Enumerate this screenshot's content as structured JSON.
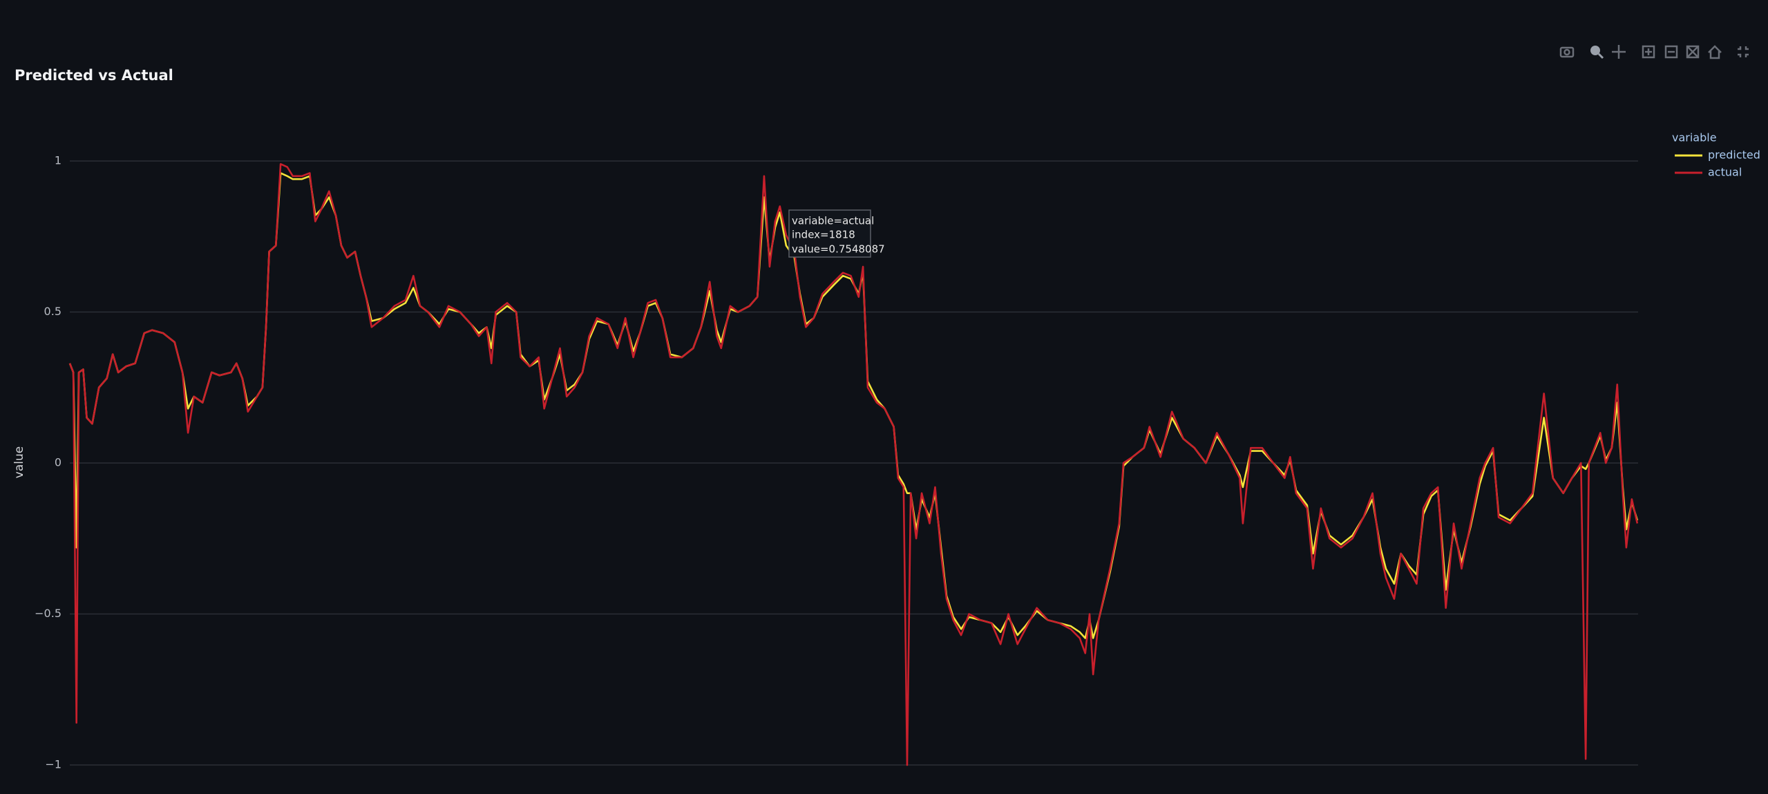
{
  "chart_data": {
    "type": "line",
    "title": "Predicted vs Actual",
    "y_label": "value",
    "legend_title": "variable",
    "legend_position": "right",
    "grid": true,
    "xlim": [
      0,
      3980
    ],
    "ylim": [
      -1,
      1
    ],
    "yticks": [
      {
        "value": -1,
        "label": "−1"
      },
      {
        "value": -0.5,
        "label": "−0.5"
      },
      0,
      0.5,
      1
    ],
    "tooltip": [
      "variable=actual",
      "index=1818",
      "value=0.7548087"
    ],
    "x": [
      0,
      9,
      17,
      23,
      34,
      43,
      57,
      74,
      94,
      109,
      123,
      143,
      166,
      189,
      209,
      237,
      266,
      286,
      300,
      315,
      337,
      360,
      380,
      409,
      423,
      438,
      452,
      475,
      489,
      498,
      506,
      523,
      535,
      552,
      566,
      589,
      609,
      623,
      638,
      658,
      675,
      689,
      704,
      724,
      738,
      752,
      766,
      795,
      824,
      852,
      872,
      889,
      909,
      938,
      961,
      990,
      1018,
      1038,
      1058,
      1070,
      1081,
      1110,
      1133,
      1144,
      1167,
      1190,
      1204,
      1224,
      1244,
      1261,
      1281,
      1301,
      1318,
      1338,
      1367,
      1390,
      1410,
      1430,
      1447,
      1467,
      1487,
      1504,
      1524,
      1553,
      1582,
      1602,
      1624,
      1642,
      1653,
      1676,
      1696,
      1725,
      1745,
      1762,
      1776,
      1790,
      1802,
      1818,
      1839,
      1853,
      1868,
      1888,
      1910,
      1939,
      1962,
      1982,
      2002,
      2013,
      2025,
      2048,
      2068,
      2091,
      2102,
      2116,
      2125,
      2134,
      2148,
      2162,
      2182,
      2196,
      2211,
      2225,
      2242,
      2262,
      2282,
      2311,
      2339,
      2362,
      2382,
      2405,
      2425,
      2454,
      2482,
      2511,
      2540,
      2563,
      2577,
      2588,
      2597,
      2611,
      2640,
      2663,
      2674,
      2697,
      2726,
      2740,
      2768,
      2797,
      2826,
      2854,
      2883,
      2911,
      2940,
      2969,
      2977,
      2997,
      3026,
      3054,
      3083,
      3097,
      3112,
      3140,
      3155,
      3175,
      3197,
      3226,
      3255,
      3283,
      3306,
      3326,
      3340,
      3361,
      3378,
      3398,
      3418,
      3435,
      3455,
      3472,
      3492,
      3512,
      3532,
      3555,
      3578,
      3592,
      3612,
      3626,
      3655,
      3684,
      3712,
      3741,
      3764,
      3790,
      3812,
      3835,
      3847,
      3855,
      3884,
      3898,
      3913,
      3927,
      3941,
      3950,
      3964,
      3978
    ],
    "series": [
      {
        "name": "predicted",
        "color": "#f5e33a",
        "values": [
          0.33,
          0.3,
          -0.28,
          0.3,
          0.31,
          0.15,
          0.13,
          0.25,
          0.28,
          0.36,
          0.3,
          0.32,
          0.33,
          0.43,
          0.44,
          0.43,
          0.4,
          0.3,
          0.18,
          0.22,
          0.2,
          0.3,
          0.29,
          0.3,
          0.33,
          0.28,
          0.19,
          0.22,
          0.25,
          0.45,
          0.7,
          0.72,
          0.96,
          0.95,
          0.94,
          0.94,
          0.95,
          0.82,
          0.84,
          0.88,
          0.82,
          0.72,
          0.68,
          0.7,
          0.62,
          0.55,
          0.47,
          0.48,
          0.51,
          0.53,
          0.58,
          0.52,
          0.5,
          0.46,
          0.51,
          0.5,
          0.46,
          0.43,
          0.45,
          0.38,
          0.49,
          0.52,
          0.5,
          0.36,
          0.32,
          0.34,
          0.21,
          0.28,
          0.36,
          0.24,
          0.26,
          0.3,
          0.41,
          0.47,
          0.46,
          0.39,
          0.47,
          0.37,
          0.43,
          0.52,
          0.53,
          0.48,
          0.36,
          0.35,
          0.38,
          0.45,
          0.57,
          0.44,
          0.4,
          0.51,
          0.5,
          0.52,
          0.55,
          0.88,
          0.67,
          0.78,
          0.83,
          0.72,
          0.68,
          0.56,
          0.46,
          0.48,
          0.55,
          0.59,
          0.62,
          0.61,
          0.56,
          0.63,
          0.27,
          0.21,
          0.18,
          0.12,
          -0.04,
          -0.07,
          -0.1,
          -0.1,
          -0.22,
          -0.12,
          -0.18,
          -0.1,
          -0.28,
          -0.44,
          -0.51,
          -0.55,
          -0.51,
          -0.52,
          -0.53,
          -0.56,
          -0.51,
          -0.57,
          -0.54,
          -0.49,
          -0.52,
          -0.53,
          -0.54,
          -0.56,
          -0.58,
          -0.52,
          -0.58,
          -0.52,
          -0.36,
          -0.21,
          -0.01,
          0.02,
          0.05,
          0.11,
          0.03,
          0.15,
          0.08,
          0.05,
          0.0,
          0.09,
          0.03,
          -0.04,
          -0.08,
          0.04,
          0.04,
          0.0,
          -0.04,
          0.01,
          -0.09,
          -0.14,
          -0.3,
          -0.16,
          -0.24,
          -0.27,
          -0.24,
          -0.18,
          -0.12,
          -0.28,
          -0.35,
          -0.4,
          -0.3,
          -0.34,
          -0.37,
          -0.17,
          -0.11,
          -0.09,
          -0.42,
          -0.22,
          -0.33,
          -0.21,
          -0.07,
          -0.01,
          0.04,
          -0.17,
          -0.19,
          -0.15,
          -0.11,
          0.15,
          -0.05,
          -0.1,
          -0.05,
          -0.01,
          -0.02,
          0.0,
          0.09,
          0.01,
          0.05,
          0.2,
          -0.08,
          -0.22,
          -0.13,
          -0.19
        ]
      },
      {
        "name": "actual",
        "color": "#c8202c",
        "values": [
          0.33,
          0.3,
          -0.86,
          0.3,
          0.31,
          0.15,
          0.13,
          0.25,
          0.28,
          0.36,
          0.3,
          0.32,
          0.33,
          0.43,
          0.44,
          0.43,
          0.4,
          0.3,
          0.1,
          0.22,
          0.2,
          0.3,
          0.29,
          0.3,
          0.33,
          0.28,
          0.17,
          0.22,
          0.25,
          0.45,
          0.7,
          0.72,
          0.99,
          0.98,
          0.95,
          0.95,
          0.96,
          0.8,
          0.84,
          0.9,
          0.82,
          0.72,
          0.68,
          0.7,
          0.62,
          0.55,
          0.45,
          0.48,
          0.52,
          0.54,
          0.62,
          0.52,
          0.5,
          0.45,
          0.52,
          0.5,
          0.46,
          0.42,
          0.45,
          0.33,
          0.5,
          0.53,
          0.5,
          0.35,
          0.32,
          0.35,
          0.18,
          0.28,
          0.38,
          0.22,
          0.25,
          0.3,
          0.42,
          0.48,
          0.46,
          0.38,
          0.48,
          0.35,
          0.43,
          0.53,
          0.54,
          0.48,
          0.35,
          0.35,
          0.38,
          0.45,
          0.6,
          0.42,
          0.38,
          0.52,
          0.5,
          0.52,
          0.55,
          0.95,
          0.65,
          0.8,
          0.85,
          0.7548087,
          0.7,
          0.55,
          0.45,
          0.48,
          0.56,
          0.6,
          0.63,
          0.62,
          0.55,
          0.65,
          0.25,
          0.2,
          0.18,
          0.12,
          -0.05,
          -0.08,
          -1.0,
          -0.1,
          -0.25,
          -0.1,
          -0.2,
          -0.08,
          -0.3,
          -0.45,
          -0.52,
          -0.57,
          -0.5,
          -0.52,
          -0.53,
          -0.6,
          -0.5,
          -0.6,
          -0.55,
          -0.48,
          -0.52,
          -0.53,
          -0.55,
          -0.58,
          -0.63,
          -0.5,
          -0.7,
          -0.52,
          -0.35,
          -0.2,
          0.0,
          0.02,
          0.05,
          0.12,
          0.02,
          0.17,
          0.08,
          0.05,
          0.0,
          0.1,
          0.03,
          -0.05,
          -0.2,
          0.05,
          0.05,
          0.0,
          -0.05,
          0.02,
          -0.1,
          -0.15,
          -0.35,
          -0.15,
          -0.25,
          -0.28,
          -0.25,
          -0.18,
          -0.1,
          -0.3,
          -0.38,
          -0.45,
          -0.3,
          -0.35,
          -0.4,
          -0.15,
          -0.1,
          -0.08,
          -0.48,
          -0.2,
          -0.35,
          -0.2,
          -0.05,
          0.0,
          0.05,
          -0.18,
          -0.2,
          -0.15,
          -0.1,
          0.23,
          -0.05,
          -0.1,
          -0.05,
          0.0,
          -0.98,
          0.0,
          0.1,
          0.0,
          0.05,
          0.26,
          -0.1,
          -0.28,
          -0.12,
          -0.2
        ]
      }
    ]
  }
}
